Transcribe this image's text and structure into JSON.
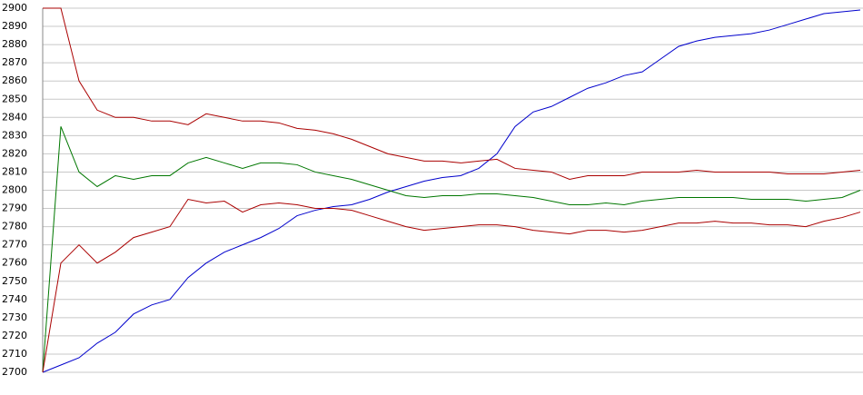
{
  "chart_data": {
    "type": "line",
    "ylim": [
      2700,
      2900
    ],
    "yticks": [
      2700,
      2710,
      2720,
      2730,
      2740,
      2750,
      2760,
      2770,
      2780,
      2790,
      2800,
      2810,
      2820,
      2830,
      2840,
      2850,
      2860,
      2870,
      2880,
      2890,
      2900
    ],
    "grid": true,
    "series": [
      {
        "color": "#0000cc",
        "values": [
          2700,
          2704,
          2708,
          2716,
          2722,
          2732,
          2737,
          2740,
          2752,
          2760,
          2766,
          2770,
          2774,
          2779,
          2786,
          2789,
          2791,
          2792,
          2795,
          2799,
          2802,
          2805,
          2807,
          2808,
          2812,
          2820,
          2835,
          2843,
          2846,
          2851,
          2856,
          2859,
          2863,
          2865,
          2872,
          2879,
          2882,
          2884,
          2885,
          2886,
          2888,
          2891,
          2894,
          2897,
          2898,
          2899
        ]
      },
      {
        "color": "#aa0000",
        "values": [
          2900,
          2900,
          2860,
          2844,
          2840,
          2840,
          2838,
          2838,
          2836,
          2842,
          2840,
          2838,
          2838,
          2837,
          2834,
          2833,
          2831,
          2828,
          2824,
          2820,
          2818,
          2816,
          2816,
          2815,
          2816,
          2817,
          2812,
          2811,
          2810,
          2806,
          2808,
          2808,
          2808,
          2810,
          2810,
          2810,
          2811,
          2810,
          2810,
          2810,
          2810,
          2809,
          2809,
          2809,
          2810,
          2811
        ]
      },
      {
        "color": "#007700",
        "values": [
          2700,
          2835,
          2810,
          2802,
          2808,
          2806,
          2808,
          2808,
          2815,
          2818,
          2815,
          2812,
          2815,
          2815,
          2814,
          2810,
          2808,
          2806,
          2803,
          2800,
          2797,
          2796,
          2797,
          2797,
          2798,
          2798,
          2797,
          2796,
          2794,
          2792,
          2792,
          2793,
          2792,
          2794,
          2795,
          2796,
          2796,
          2796,
          2796,
          2795,
          2795,
          2795,
          2794,
          2795,
          2796,
          2800
        ]
      },
      {
        "color": "#aa0000",
        "values": [
          2700,
          2760,
          2770,
          2760,
          2766,
          2774,
          2777,
          2780,
          2795,
          2793,
          2794,
          2788,
          2792,
          2793,
          2792,
          2790,
          2790,
          2789,
          2786,
          2783,
          2780,
          2778,
          2779,
          2780,
          2781,
          2781,
          2780,
          2778,
          2777,
          2776,
          2778,
          2778,
          2777,
          2778,
          2780,
          2782,
          2782,
          2783,
          2782,
          2782,
          2781,
          2781,
          2780,
          2783,
          2785,
          2788
        ]
      }
    ]
  }
}
